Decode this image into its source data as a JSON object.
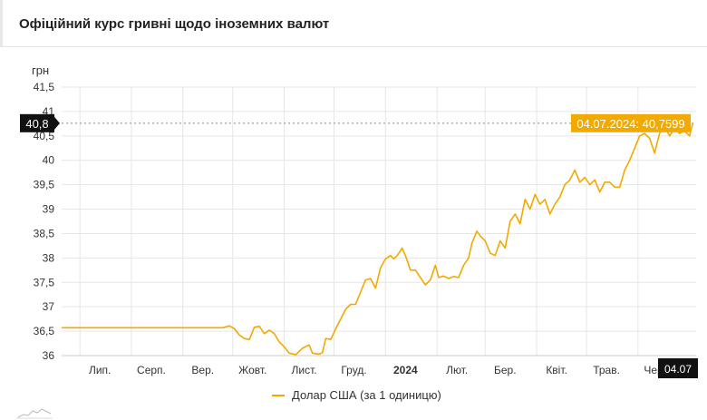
{
  "header": {
    "title": "Офіційний курс гривні щодо іноземних валют"
  },
  "chart_data": {
    "type": "line",
    "title": "",
    "ylabel": "грн",
    "xlabel": "",
    "ylim": [
      36,
      41.5
    ],
    "xlim": [
      "2023-06-20",
      "2024-07-06"
    ],
    "y_ticks": [
      "41,5",
      "41",
      "40,5",
      "40",
      "39,5",
      "39",
      "38,5",
      "38",
      "37,5",
      "37",
      "36,5",
      "36"
    ],
    "x_ticks": [
      {
        "date": "2023-07-01",
        "label": "Лип."
      },
      {
        "date": "2023-08-01",
        "label": "Серп."
      },
      {
        "date": "2023-09-01",
        "label": "Вер."
      },
      {
        "date": "2023-10-01",
        "label": "Жовт."
      },
      {
        "date": "2023-11-01",
        "label": "Лист."
      },
      {
        "date": "2023-12-01",
        "label": "Груд."
      },
      {
        "date": "2024-01-01",
        "label": "2024"
      },
      {
        "date": "2024-02-01",
        "label": "Лют."
      },
      {
        "date": "2024-03-01",
        "label": "Бер."
      },
      {
        "date": "2024-04-01",
        "label": "Квіт."
      },
      {
        "date": "2024-05-01",
        "label": "Трав."
      },
      {
        "date": "2024-06-01",
        "label": "Черв."
      }
    ],
    "grid": true,
    "legend_position": "bottom-center",
    "crosshair": {
      "y_label": "40,8",
      "x_label": "04.07",
      "tooltip": "04.07.2024: 40,7599",
      "x": "2024-07-04",
      "y": 40.7599
    },
    "series": [
      {
        "name": "Долар США (за 1 одиницю)",
        "color": "#f2a900",
        "points": [
          [
            "2023-06-20",
            36.57
          ],
          [
            "2023-07-15",
            36.57
          ],
          [
            "2023-08-15",
            36.57
          ],
          [
            "2023-09-15",
            36.57
          ],
          [
            "2023-09-25",
            36.57
          ],
          [
            "2023-09-29",
            36.61
          ],
          [
            "2023-10-02",
            36.55
          ],
          [
            "2023-10-05",
            36.42
          ],
          [
            "2023-10-08",
            36.35
          ],
          [
            "2023-10-11",
            36.33
          ],
          [
            "2023-10-14",
            36.58
          ],
          [
            "2023-10-17",
            36.6
          ],
          [
            "2023-10-20",
            36.45
          ],
          [
            "2023-10-23",
            36.52
          ],
          [
            "2023-10-26",
            36.45
          ],
          [
            "2023-10-29",
            36.28
          ],
          [
            "2023-11-01",
            36.18
          ],
          [
            "2023-11-04",
            36.05
          ],
          [
            "2023-11-08",
            36.02
          ],
          [
            "2023-11-12",
            36.15
          ],
          [
            "2023-11-16",
            36.22
          ],
          [
            "2023-11-18",
            36.05
          ],
          [
            "2023-11-22",
            36.03
          ],
          [
            "2023-11-24",
            36.06
          ],
          [
            "2023-11-26",
            36.35
          ],
          [
            "2023-11-29",
            36.33
          ],
          [
            "2023-12-02",
            36.55
          ],
          [
            "2023-12-05",
            36.75
          ],
          [
            "2023-12-08",
            36.95
          ],
          [
            "2023-12-11",
            37.05
          ],
          [
            "2023-12-14",
            37.05
          ],
          [
            "2023-12-17",
            37.3
          ],
          [
            "2023-12-20",
            37.55
          ],
          [
            "2023-12-23",
            37.58
          ],
          [
            "2023-12-26",
            37.38
          ],
          [
            "2023-12-29",
            37.8
          ],
          [
            "2024-01-01",
            37.98
          ],
          [
            "2024-01-04",
            38.05
          ],
          [
            "2024-01-06",
            37.98
          ],
          [
            "2024-01-08",
            38.05
          ],
          [
            "2024-01-11",
            38.2
          ],
          [
            "2024-01-13",
            38.05
          ],
          [
            "2024-01-16",
            37.75
          ],
          [
            "2024-01-19",
            37.75
          ],
          [
            "2024-01-22",
            37.6
          ],
          [
            "2024-01-25",
            37.45
          ],
          [
            "2024-01-28",
            37.55
          ],
          [
            "2024-01-31",
            37.85
          ],
          [
            "2024-02-02",
            37.6
          ],
          [
            "2024-02-05",
            37.63
          ],
          [
            "2024-02-08",
            37.58
          ],
          [
            "2024-02-11",
            37.62
          ],
          [
            "2024-02-14",
            37.6
          ],
          [
            "2024-02-17",
            37.85
          ],
          [
            "2024-02-20",
            38.0
          ],
          [
            "2024-02-22",
            38.3
          ],
          [
            "2024-02-25",
            38.55
          ],
          [
            "2024-02-27",
            38.45
          ],
          [
            "2024-03-01",
            38.35
          ],
          [
            "2024-03-04",
            38.1
          ],
          [
            "2024-03-07",
            38.05
          ],
          [
            "2024-03-10",
            38.35
          ],
          [
            "2024-03-13",
            38.2
          ],
          [
            "2024-03-16",
            38.75
          ],
          [
            "2024-03-19",
            38.9
          ],
          [
            "2024-03-22",
            38.7
          ],
          [
            "2024-03-25",
            39.2
          ],
          [
            "2024-03-28",
            39.0
          ],
          [
            "2024-03-31",
            39.3
          ],
          [
            "2024-04-03",
            39.1
          ],
          [
            "2024-04-06",
            39.2
          ],
          [
            "2024-04-09",
            38.9
          ],
          [
            "2024-04-12",
            39.1
          ],
          [
            "2024-04-15",
            39.25
          ],
          [
            "2024-04-18",
            39.5
          ],
          [
            "2024-04-21",
            39.6
          ],
          [
            "2024-04-24",
            39.8
          ],
          [
            "2024-04-27",
            39.55
          ],
          [
            "2024-04-30",
            39.65
          ],
          [
            "2024-05-03",
            39.5
          ],
          [
            "2024-05-06",
            39.6
          ],
          [
            "2024-05-09",
            39.35
          ],
          [
            "2024-05-12",
            39.55
          ],
          [
            "2024-05-15",
            39.55
          ],
          [
            "2024-05-18",
            39.45
          ],
          [
            "2024-05-21",
            39.45
          ],
          [
            "2024-05-24",
            39.8
          ],
          [
            "2024-05-27",
            40.0
          ],
          [
            "2024-05-30",
            40.25
          ],
          [
            "2024-06-02",
            40.5
          ],
          [
            "2024-06-05",
            40.55
          ],
          [
            "2024-06-08",
            40.45
          ],
          [
            "2024-06-11",
            40.15
          ],
          [
            "2024-06-14",
            40.55
          ],
          [
            "2024-06-17",
            40.7
          ],
          [
            "2024-06-20",
            40.5
          ],
          [
            "2024-06-23",
            40.65
          ],
          [
            "2024-06-26",
            40.55
          ],
          [
            "2024-06-29",
            40.6
          ],
          [
            "2024-07-02",
            40.5
          ],
          [
            "2024-07-04",
            40.7599
          ]
        ]
      }
    ]
  }
}
